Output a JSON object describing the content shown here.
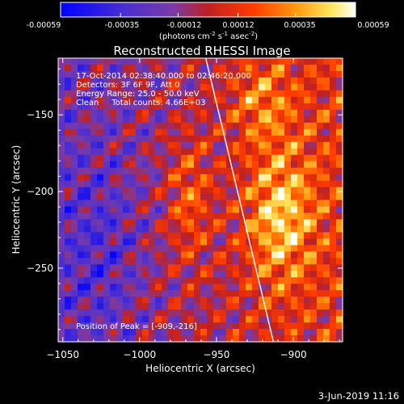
{
  "title": "Reconstructed RHESSI Image",
  "colorbar": {
    "ticks": [
      "-0.00059",
      "-0.00035",
      "-0.00012",
      "0.00012",
      "0.00035",
      "0.00059"
    ],
    "unit_main": "(photons cm",
    "unit_exp1": "-2",
    "unit_mid1": " s",
    "unit_exp2": "-1",
    "unit_mid2": " asec",
    "unit_exp3": "-2",
    "unit_end": ")",
    "range": [
      -0.00059,
      0.00059
    ]
  },
  "info": {
    "line1": "17-Oct-2014 02:38:40.000 to 02:46:20.000",
    "line2": "Detectors: 3F 6F 9F, Att 0",
    "line3": "Energy Range: 25.0 - 50.0 keV",
    "line4": "Clean     Total counts: 4.66E+03"
  },
  "peak_label": "Position of Peak = [-909,-216]",
  "footer_date": "3-Jun-2019 11:16",
  "chart_data": {
    "type": "heatmap",
    "title": "Reconstructed RHESSI Image",
    "xlabel": "Heliocentric X (arcsec)",
    "ylabel": "Heliocentric Y (arcsec)",
    "xlim": [
      -1053,
      -868
    ],
    "ylim": [
      -298,
      -113
    ],
    "xticks": [
      -1050,
      -1000,
      -950,
      -900
    ],
    "yticks": [
      -150,
      -200,
      -250
    ],
    "xtick_labels": [
      "−1050",
      "−1000",
      "−950",
      "−900"
    ],
    "ytick_labels": [
      "−150",
      "−200",
      "−250"
    ],
    "peak": [
      -909,
      -216
    ],
    "colormap": "blue-purple-red-yellow-white",
    "limb_line": [
      [
        -957,
        -113
      ],
      [
        -913,
        -298
      ]
    ],
    "grid": false
  }
}
